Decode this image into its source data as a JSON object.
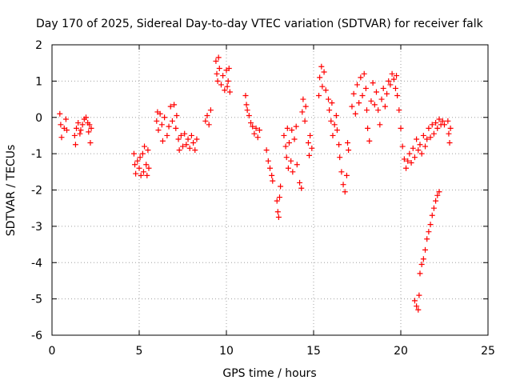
{
  "chart_data": {
    "type": "scatter",
    "title": "Day 170 of 2025, Sidereal Day-to-day VTEC variation (SDTVAR) for receiver falk",
    "xlabel": "GPS time / hours",
    "ylabel": "SDTVAR / TECUs",
    "xlim": [
      0,
      25
    ],
    "ylim": [
      -6,
      2
    ],
    "xticks": [
      0,
      5,
      10,
      15,
      20,
      25
    ],
    "yticks": [
      -6,
      -5,
      -4,
      -3,
      -2,
      -1,
      0,
      1,
      2
    ],
    "grid": true,
    "marker": "+",
    "color": "#ff0000",
    "series": [
      {
        "name": "SDTVAR",
        "points": [
          [
            0.45,
            0.1
          ],
          [
            0.5,
            -0.2
          ],
          [
            0.55,
            -0.55
          ],
          [
            0.7,
            -0.3
          ],
          [
            0.8,
            -0.05
          ],
          [
            0.85,
            -0.35
          ],
          [
            1.3,
            -0.5
          ],
          [
            1.35,
            -0.75
          ],
          [
            1.4,
            -0.3
          ],
          [
            1.5,
            -0.15
          ],
          [
            1.6,
            -0.45
          ],
          [
            1.65,
            -0.35
          ],
          [
            1.75,
            -0.2
          ],
          [
            1.85,
            -0.05
          ],
          [
            1.95,
            0.0
          ],
          [
            2.05,
            -0.15
          ],
          [
            2.1,
            -0.4
          ],
          [
            2.15,
            -0.2
          ],
          [
            2.2,
            -0.7
          ],
          [
            2.25,
            -0.3
          ],
          [
            4.7,
            -1.0
          ],
          [
            4.75,
            -1.3
          ],
          [
            4.8,
            -1.55
          ],
          [
            4.9,
            -1.2
          ],
          [
            5.0,
            -1.4
          ],
          [
            5.05,
            -1.1
          ],
          [
            5.1,
            -1.6
          ],
          [
            5.2,
            -1.0
          ],
          [
            5.25,
            -1.5
          ],
          [
            5.3,
            -0.8
          ],
          [
            5.4,
            -1.3
          ],
          [
            5.45,
            -1.6
          ],
          [
            5.5,
            -0.9
          ],
          [
            5.55,
            -1.4
          ],
          [
            6.0,
            -0.1
          ],
          [
            6.05,
            0.15
          ],
          [
            6.1,
            -0.35
          ],
          [
            6.2,
            0.1
          ],
          [
            6.3,
            -0.2
          ],
          [
            6.35,
            -0.65
          ],
          [
            6.45,
            0.0
          ],
          [
            6.6,
            -0.5
          ],
          [
            6.7,
            -0.25
          ],
          [
            6.8,
            0.3
          ],
          [
            6.9,
            -0.1
          ],
          [
            7.0,
            0.35
          ],
          [
            7.1,
            -0.3
          ],
          [
            7.15,
            0.05
          ],
          [
            7.25,
            -0.6
          ],
          [
            7.3,
            -0.9
          ],
          [
            7.4,
            -0.5
          ],
          [
            7.5,
            -0.8
          ],
          [
            7.6,
            -0.45
          ],
          [
            7.7,
            -0.75
          ],
          [
            7.8,
            -0.6
          ],
          [
            7.9,
            -0.85
          ],
          [
            8.0,
            -0.5
          ],
          [
            8.1,
            -0.7
          ],
          [
            8.2,
            -0.9
          ],
          [
            8.3,
            -0.6
          ],
          [
            8.8,
            -0.1
          ],
          [
            8.9,
            0.05
          ],
          [
            9.0,
            -0.2
          ],
          [
            9.1,
            0.2
          ],
          [
            9.4,
            1.55
          ],
          [
            9.45,
            1.2
          ],
          [
            9.5,
            1.0
          ],
          [
            9.55,
            1.65
          ],
          [
            9.6,
            1.35
          ],
          [
            9.7,
            0.9
          ],
          [
            9.8,
            1.15
          ],
          [
            9.9,
            0.75
          ],
          [
            10.0,
            1.3
          ],
          [
            10.05,
            0.85
          ],
          [
            10.1,
            1.0
          ],
          [
            10.15,
            1.35
          ],
          [
            10.2,
            0.7
          ],
          [
            11.1,
            0.6
          ],
          [
            11.15,
            0.35
          ],
          [
            11.2,
            0.2
          ],
          [
            11.3,
            0.05
          ],
          [
            11.4,
            -0.15
          ],
          [
            11.5,
            -0.25
          ],
          [
            11.6,
            -0.45
          ],
          [
            11.7,
            -0.3
          ],
          [
            11.8,
            -0.55
          ],
          [
            11.9,
            -0.35
          ],
          [
            12.3,
            -0.9
          ],
          [
            12.4,
            -1.2
          ],
          [
            12.5,
            -1.4
          ],
          [
            12.6,
            -1.6
          ],
          [
            12.65,
            -1.75
          ],
          [
            12.9,
            -2.3
          ],
          [
            12.95,
            -2.6
          ],
          [
            13.0,
            -2.75
          ],
          [
            13.05,
            -2.2
          ],
          [
            13.1,
            -1.9
          ],
          [
            13.3,
            -0.5
          ],
          [
            13.4,
            -0.8
          ],
          [
            13.45,
            -1.1
          ],
          [
            13.5,
            -0.3
          ],
          [
            13.55,
            -1.4
          ],
          [
            13.6,
            -0.7
          ],
          [
            13.7,
            -1.2
          ],
          [
            13.75,
            -0.35
          ],
          [
            13.8,
            -1.5
          ],
          [
            13.9,
            -0.6
          ],
          [
            14.0,
            -0.25
          ],
          [
            14.05,
            -1.3
          ],
          [
            14.2,
            -1.8
          ],
          [
            14.3,
            -1.95
          ],
          [
            14.35,
            0.15
          ],
          [
            14.4,
            0.5
          ],
          [
            14.5,
            -0.1
          ],
          [
            14.55,
            0.3
          ],
          [
            14.7,
            -0.7
          ],
          [
            14.75,
            -1.05
          ],
          [
            14.8,
            -0.5
          ],
          [
            14.9,
            -0.85
          ],
          [
            15.3,
            0.6
          ],
          [
            15.35,
            1.1
          ],
          [
            15.45,
            1.4
          ],
          [
            15.5,
            0.85
          ],
          [
            15.6,
            1.25
          ],
          [
            15.7,
            0.75
          ],
          [
            15.85,
            0.5
          ],
          [
            15.9,
            0.2
          ],
          [
            16.0,
            -0.1
          ],
          [
            16.05,
            0.4
          ],
          [
            16.1,
            -0.5
          ],
          [
            16.2,
            -0.2
          ],
          [
            16.3,
            0.05
          ],
          [
            16.35,
            -0.35
          ],
          [
            16.45,
            -0.75
          ],
          [
            16.5,
            -1.1
          ],
          [
            16.6,
            -1.5
          ],
          [
            16.7,
            -1.85
          ],
          [
            16.8,
            -2.05
          ],
          [
            16.9,
            -1.6
          ],
          [
            16.95,
            -0.7
          ],
          [
            17.0,
            -0.9
          ],
          [
            17.2,
            0.3
          ],
          [
            17.3,
            0.65
          ],
          [
            17.4,
            0.1
          ],
          [
            17.5,
            0.9
          ],
          [
            17.6,
            0.4
          ],
          [
            17.7,
            1.1
          ],
          [
            17.8,
            0.6
          ],
          [
            17.9,
            1.2
          ],
          [
            18.0,
            0.8
          ],
          [
            18.05,
            0.2
          ],
          [
            18.1,
            -0.3
          ],
          [
            18.2,
            -0.65
          ],
          [
            18.3,
            0.45
          ],
          [
            18.4,
            0.95
          ],
          [
            18.5,
            0.35
          ],
          [
            18.6,
            0.7
          ],
          [
            18.7,
            0.2
          ],
          [
            18.8,
            -0.2
          ],
          [
            18.9,
            0.5
          ],
          [
            19.0,
            0.8
          ],
          [
            19.1,
            0.3
          ],
          [
            19.2,
            0.65
          ],
          [
            19.3,
            1.0
          ],
          [
            19.4,
            0.9
          ],
          [
            19.5,
            1.2
          ],
          [
            19.6,
            1.05
          ],
          [
            19.7,
            0.8
          ],
          [
            19.75,
            1.15
          ],
          [
            19.8,
            0.6
          ],
          [
            19.9,
            0.2
          ],
          [
            20.0,
            -0.3
          ],
          [
            20.1,
            -0.8
          ],
          [
            20.2,
            -1.15
          ],
          [
            20.3,
            -1.4
          ],
          [
            20.4,
            -1.2
          ],
          [
            20.5,
            -1.0
          ],
          [
            20.6,
            -1.25
          ],
          [
            20.7,
            -0.85
          ],
          [
            20.8,
            -1.1
          ],
          [
            20.9,
            -0.6
          ],
          [
            21.0,
            -0.9
          ],
          [
            21.1,
            -0.75
          ],
          [
            21.2,
            -1.0
          ],
          [
            21.3,
            -0.5
          ],
          [
            21.4,
            -0.8
          ],
          [
            21.5,
            -0.6
          ],
          [
            21.6,
            -0.3
          ],
          [
            21.7,
            -0.55
          ],
          [
            21.8,
            -0.2
          ],
          [
            21.9,
            -0.45
          ],
          [
            22.0,
            -0.15
          ],
          [
            22.1,
            -0.3
          ],
          [
            22.2,
            -0.05
          ],
          [
            22.3,
            -0.2
          ],
          [
            22.4,
            -0.1
          ],
          [
            22.5,
            -0.2
          ],
          [
            20.8,
            -5.05
          ],
          [
            20.9,
            -5.2
          ],
          [
            21.0,
            -5.3
          ],
          [
            21.05,
            -4.9
          ],
          [
            21.1,
            -4.3
          ],
          [
            21.2,
            -4.05
          ],
          [
            21.3,
            -3.9
          ],
          [
            21.4,
            -3.65
          ],
          [
            21.5,
            -3.35
          ],
          [
            21.6,
            -3.15
          ],
          [
            21.7,
            -2.95
          ],
          [
            21.8,
            -2.7
          ],
          [
            21.9,
            -2.5
          ],
          [
            22.0,
            -2.3
          ],
          [
            22.1,
            -2.15
          ],
          [
            22.2,
            -2.05
          ],
          [
            22.7,
            -0.1
          ],
          [
            22.75,
            -0.45
          ],
          [
            22.8,
            -0.7
          ],
          [
            22.85,
            -0.3
          ]
        ]
      }
    ]
  }
}
